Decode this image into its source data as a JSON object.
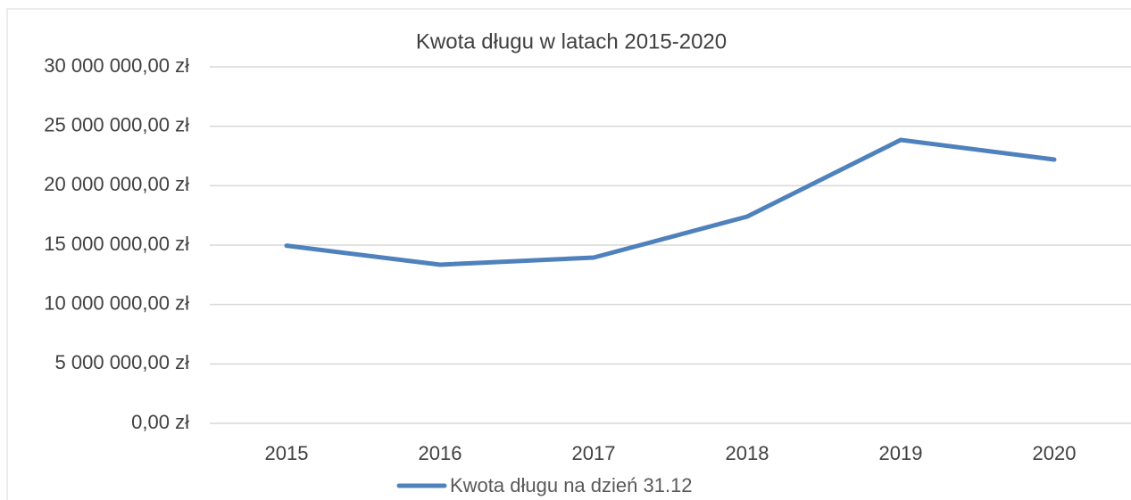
{
  "chart_data": {
    "type": "line",
    "title": "Kwota długu w latach 2015-2020",
    "categories": [
      "2015",
      "2016",
      "2017",
      "2018",
      "2019",
      "2020"
    ],
    "series": [
      {
        "name": "Kwota długu na dzień 31.12",
        "color": "#4f81bd",
        "values": [
          14950000,
          13350000,
          13950000,
          17400000,
          23850000,
          22200000
        ]
      }
    ],
    "ylim": [
      0,
      30000000
    ],
    "yticks": [
      {
        "value": 0,
        "label": "0,00 zł"
      },
      {
        "value": 5000000,
        "label": "5 000 000,00 zł"
      },
      {
        "value": 10000000,
        "label": "10 000 000,00 zł"
      },
      {
        "value": 15000000,
        "label": "15 000 000,00 zł"
      },
      {
        "value": 20000000,
        "label": "20 000 000,00 zł"
      },
      {
        "value": 25000000,
        "label": "25 000 000,00 zł"
      },
      {
        "value": 30000000,
        "label": "30 000 000,00 zł"
      }
    ],
    "grid": true,
    "legend": "bottom"
  }
}
